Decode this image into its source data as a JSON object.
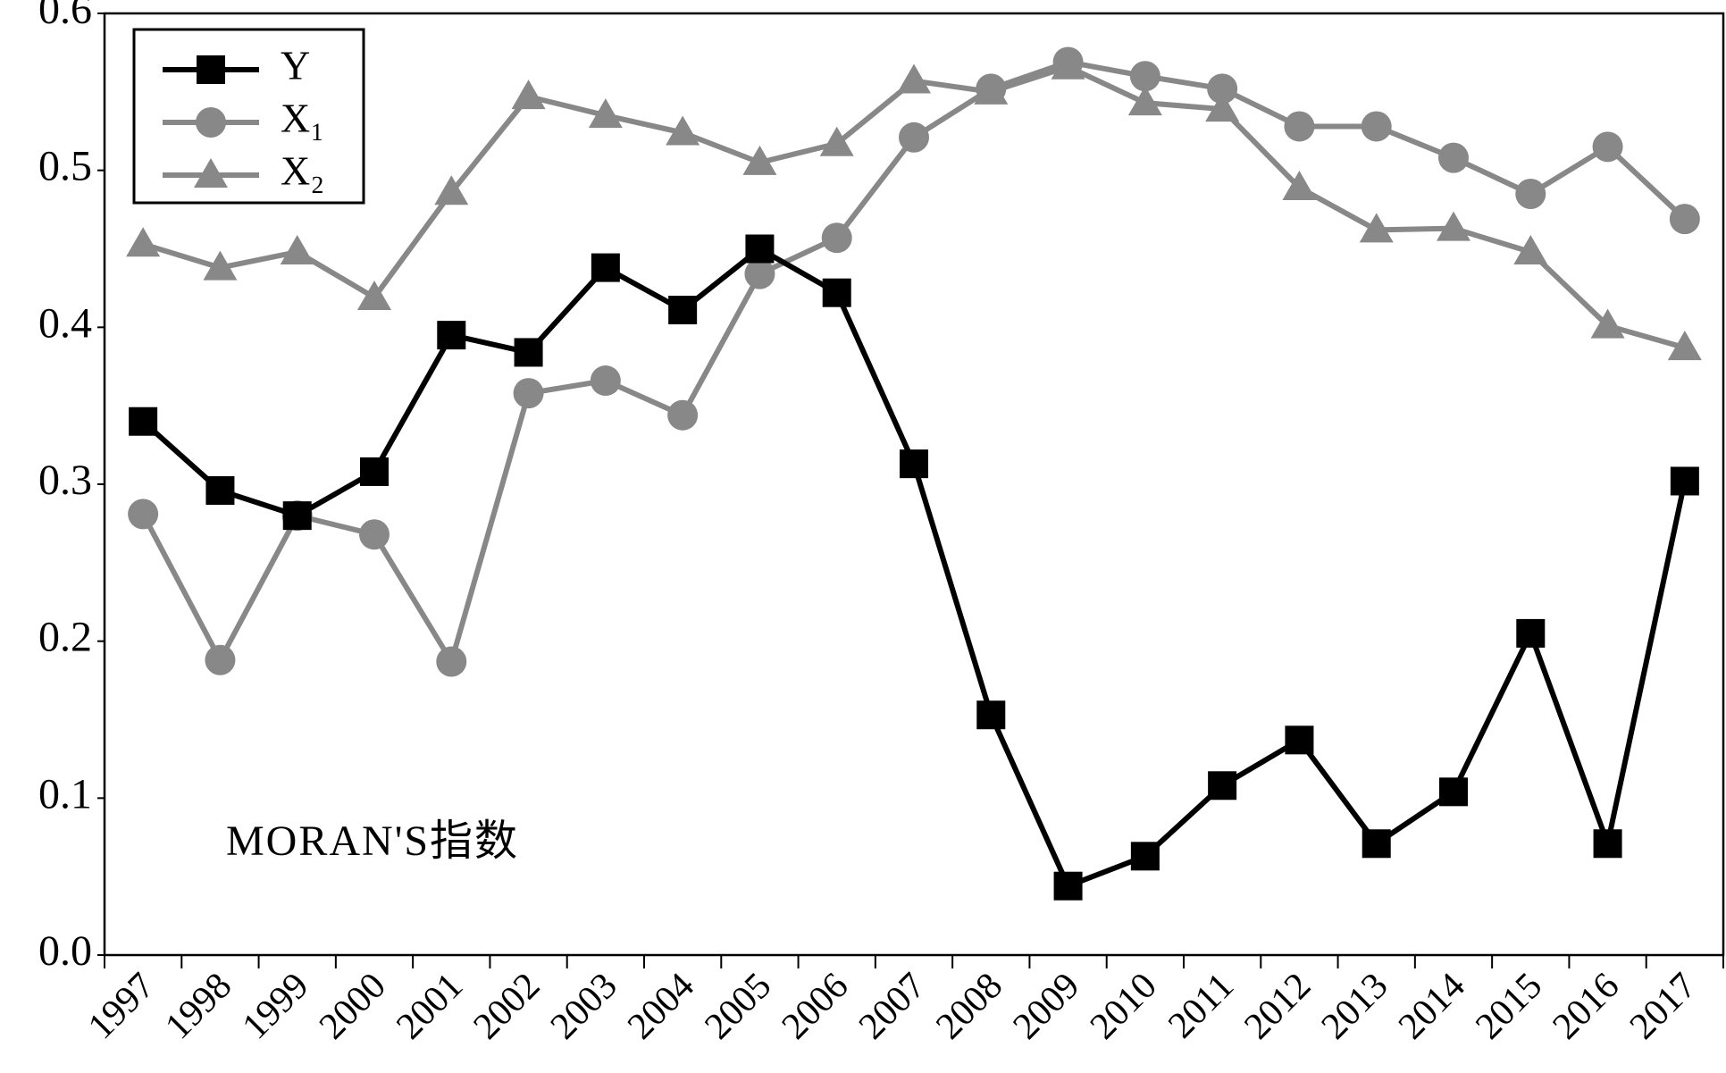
{
  "chart_data": {
    "type": "line",
    "annotation": "MORAN'S指数",
    "categories": [
      "1997",
      "1998",
      "1999",
      "2000",
      "2001",
      "2002",
      "2003",
      "2004",
      "2005",
      "2006",
      "2007",
      "2008",
      "2009",
      "2010",
      "2011",
      "2012",
      "2013",
      "2014",
      "2015",
      "2016",
      "2017"
    ],
    "series": [
      {
        "name": "Y",
        "color": "#000000",
        "marker": "square",
        "values": [
          0.34,
          0.296,
          0.28,
          0.308,
          0.395,
          0.384,
          0.438,
          0.411,
          0.45,
          0.422,
          0.313,
          0.153,
          0.044,
          0.063,
          0.108,
          0.137,
          0.071,
          0.104,
          0.205,
          0.071,
          0.302
        ]
      },
      {
        "name": "X₁",
        "color": "#888888",
        "marker": "circle",
        "values": [
          0.281,
          0.188,
          0.28,
          0.268,
          0.187,
          0.358,
          0.366,
          0.344,
          0.434,
          0.457,
          0.521,
          0.552,
          0.569,
          0.56,
          0.552,
          0.528,
          0.528,
          0.508,
          0.485,
          0.515,
          0.469
        ]
      },
      {
        "name": "X₂",
        "color": "#888888",
        "marker": "triangle",
        "values": [
          0.453,
          0.438,
          0.448,
          0.419,
          0.486,
          0.547,
          0.535,
          0.524,
          0.505,
          0.517,
          0.557,
          0.55,
          0.566,
          0.543,
          0.539,
          0.489,
          0.462,
          0.463,
          0.448,
          0.401,
          0.387
        ]
      }
    ],
    "ylim": [
      0,
      0.6
    ],
    "yticks": [
      {
        "value": 0,
        "label": "0.0"
      },
      0.1,
      0.2,
      0.3,
      0.4,
      0.5,
      0.6
    ],
    "legend": "upper left"
  }
}
